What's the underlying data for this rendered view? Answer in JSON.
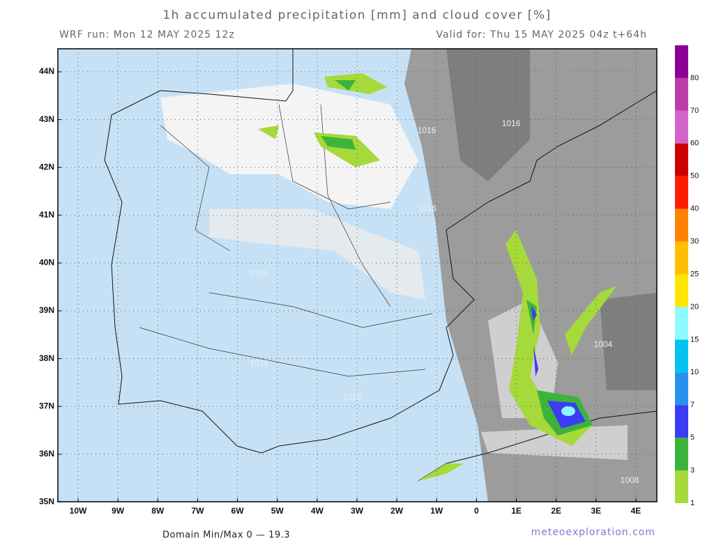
{
  "header": {
    "title": "1h accumulated precipitation [mm] and cloud cover [%]",
    "run": "WRF run: Mon 12 MAY 2025 12z",
    "valid": "Valid for: Thu 15 MAY 2025 04z  t+64h"
  },
  "map": {
    "lat_labels": [
      "44N",
      "43N",
      "42N",
      "41N",
      "40N",
      "39N",
      "38N",
      "37N",
      "36N",
      "35N"
    ],
    "lon_labels": [
      "10W",
      "9W",
      "8W",
      "7W",
      "6W",
      "5W",
      "4W",
      "3W",
      "2W",
      "1W",
      "0",
      "1E",
      "2E",
      "3E",
      "4E"
    ],
    "isobars": [
      "1016",
      "1016",
      "1016",
      "1016",
      "1016",
      "1016",
      "1004",
      "1008"
    ]
  },
  "colorbar": {
    "levels": [
      1,
      3,
      5,
      7,
      10,
      15,
      20,
      25,
      30,
      40,
      50,
      60,
      70,
      80
    ],
    "colors": [
      "#a6d93a",
      "#3cb43c",
      "#3c3cf5",
      "#2891f0",
      "#00c3f0",
      "#8cfaff",
      "#ffe600",
      "#ffbe00",
      "#ff8200",
      "#ff1e00",
      "#cc0000",
      "#d264c8",
      "#be3caa",
      "#8c0096"
    ]
  },
  "footer": {
    "minmax": "Domain Min/Max 0 — 19.3",
    "credit": "meteoexploration.com"
  }
}
